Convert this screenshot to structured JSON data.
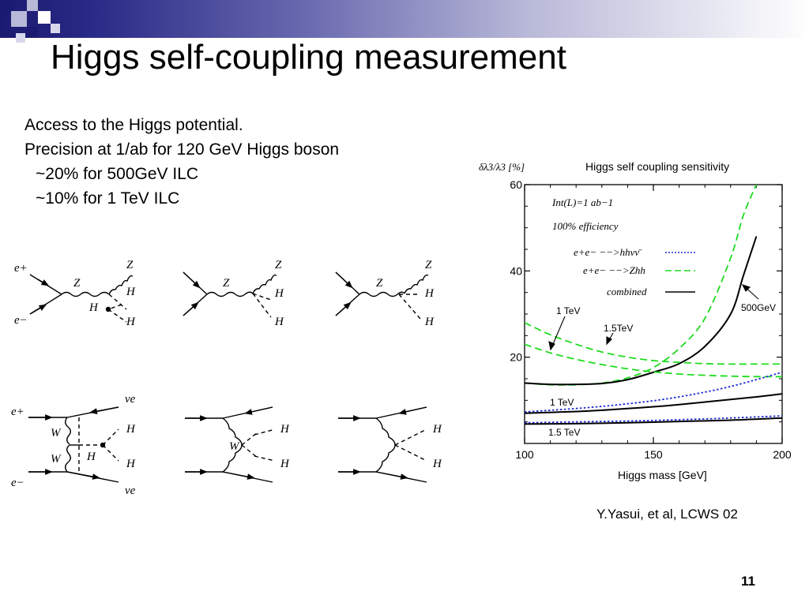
{
  "slide": {
    "title": "Higgs self-coupling measurement",
    "bullets": [
      "Access to the Higgs potential.",
      "Precision at 1/ab for 120 GeV Higgs boson",
      "~20% for 500GeV ILC",
      "~10% for 1 TeV ILC"
    ],
    "citation": "Y.Yasui, et al, LCWS 02",
    "page_number": "11"
  },
  "diagram_labels": {
    "e_plus": "e+",
    "e_minus": "e−",
    "Z": "Z",
    "H": "H",
    "W": "W",
    "nu_e": "νe"
  },
  "colors": {
    "header_dark": "#1a1a70",
    "green_dash": "#1fdc1f",
    "blue_dot": "#1a2bd6",
    "combined": "#000000"
  },
  "chart_data": {
    "type": "line",
    "title": "Higgs self coupling sensitivity",
    "xlabel": "Higgs mass [GeV]",
    "ylabel": "δλ3/λ3 [%]",
    "xlim": [
      100,
      200
    ],
    "ylim": [
      0,
      60
    ],
    "xticks": [
      100,
      150,
      200
    ],
    "yticks": [
      20,
      40,
      60
    ],
    "legend": {
      "placement": "top-left",
      "header": [
        "Int(L)=1 ab−1",
        "100% efficiency"
      ],
      "entries": [
        {
          "label": "e+e− −−>hhνν̄",
          "style": "dotted",
          "color": "#1a2bd6"
        },
        {
          "label": "e+e− −−>Zhh",
          "style": "dashed",
          "color": "#1fdc1f"
        },
        {
          "label": "combined",
          "style": "solid",
          "color": "#000000"
        }
      ]
    },
    "annotations": [
      "1 TeV",
      "1.5TeV",
      "500GeV",
      "1 TeV",
      "1.5 TeV"
    ],
    "series": [
      {
        "group": "500GeV",
        "style": "dashed",
        "color": "#1fdc1f",
        "x": [
          100,
          110,
          120,
          130,
          140,
          150,
          160,
          170,
          180,
          185,
          190
        ],
        "y": [
          14,
          13.6,
          13.6,
          14,
          15.2,
          17.6,
          22,
          29,
          43,
          53,
          60
        ]
      },
      {
        "group": "500GeV",
        "style": "solid",
        "color": "#000000",
        "x": [
          100,
          110,
          120,
          130,
          140,
          150,
          160,
          170,
          180,
          185,
          190
        ],
        "y": [
          14,
          13.7,
          13.7,
          13.9,
          14.8,
          16.5,
          18.5,
          22.5,
          30,
          39,
          48
        ]
      },
      {
        "group": "1 TeV",
        "style": "dashed",
        "color": "#1fdc1f",
        "x": [
          100,
          110,
          120,
          130,
          140,
          150,
          160,
          170,
          180,
          190,
          200
        ],
        "y": [
          28,
          25.2,
          23,
          21.2,
          20,
          19.2,
          18.8,
          18.5,
          18.4,
          18.4,
          18.4
        ]
      },
      {
        "group": "1.5TeV",
        "style": "dashed",
        "color": "#1fdc1f",
        "x": [
          100,
          110,
          120,
          130,
          140,
          150,
          160,
          170,
          180,
          190,
          200
        ],
        "y": [
          23,
          21,
          19.5,
          18.3,
          17.3,
          16.6,
          16.1,
          15.8,
          15.6,
          15.5,
          15.5
        ]
      },
      {
        "group": "1 TeV",
        "style": "dotted",
        "color": "#1a2bd6",
        "x": [
          100,
          110,
          120,
          130,
          140,
          150,
          160,
          170,
          180,
          190,
          200
        ],
        "y": [
          7.3,
          7.7,
          8.1,
          8.6,
          9.2,
          9.9,
          10.8,
          11.9,
          13.2,
          14.8,
          16.5
        ]
      },
      {
        "group": "1 TeV",
        "style": "solid",
        "color": "#000000",
        "x": [
          100,
          110,
          120,
          130,
          140,
          150,
          160,
          170,
          180,
          190,
          200
        ],
        "y": [
          7,
          7.2,
          7.4,
          7.7,
          8.1,
          8.5,
          9,
          9.6,
          10.2,
          10.8,
          11.5
        ]
      },
      {
        "group": "1.5 TeV",
        "style": "dotted",
        "color": "#1a2bd6",
        "x": [
          100,
          120,
          140,
          160,
          180,
          200
        ],
        "y": [
          4.8,
          5,
          5.2,
          5.5,
          5.9,
          6.4
        ]
      },
      {
        "group": "1.5 TeV",
        "style": "solid",
        "color": "#000000",
        "x": [
          100,
          120,
          140,
          160,
          180,
          200
        ],
        "y": [
          4.5,
          4.6,
          4.8,
          5.1,
          5.4,
          5.9
        ]
      }
    ]
  }
}
